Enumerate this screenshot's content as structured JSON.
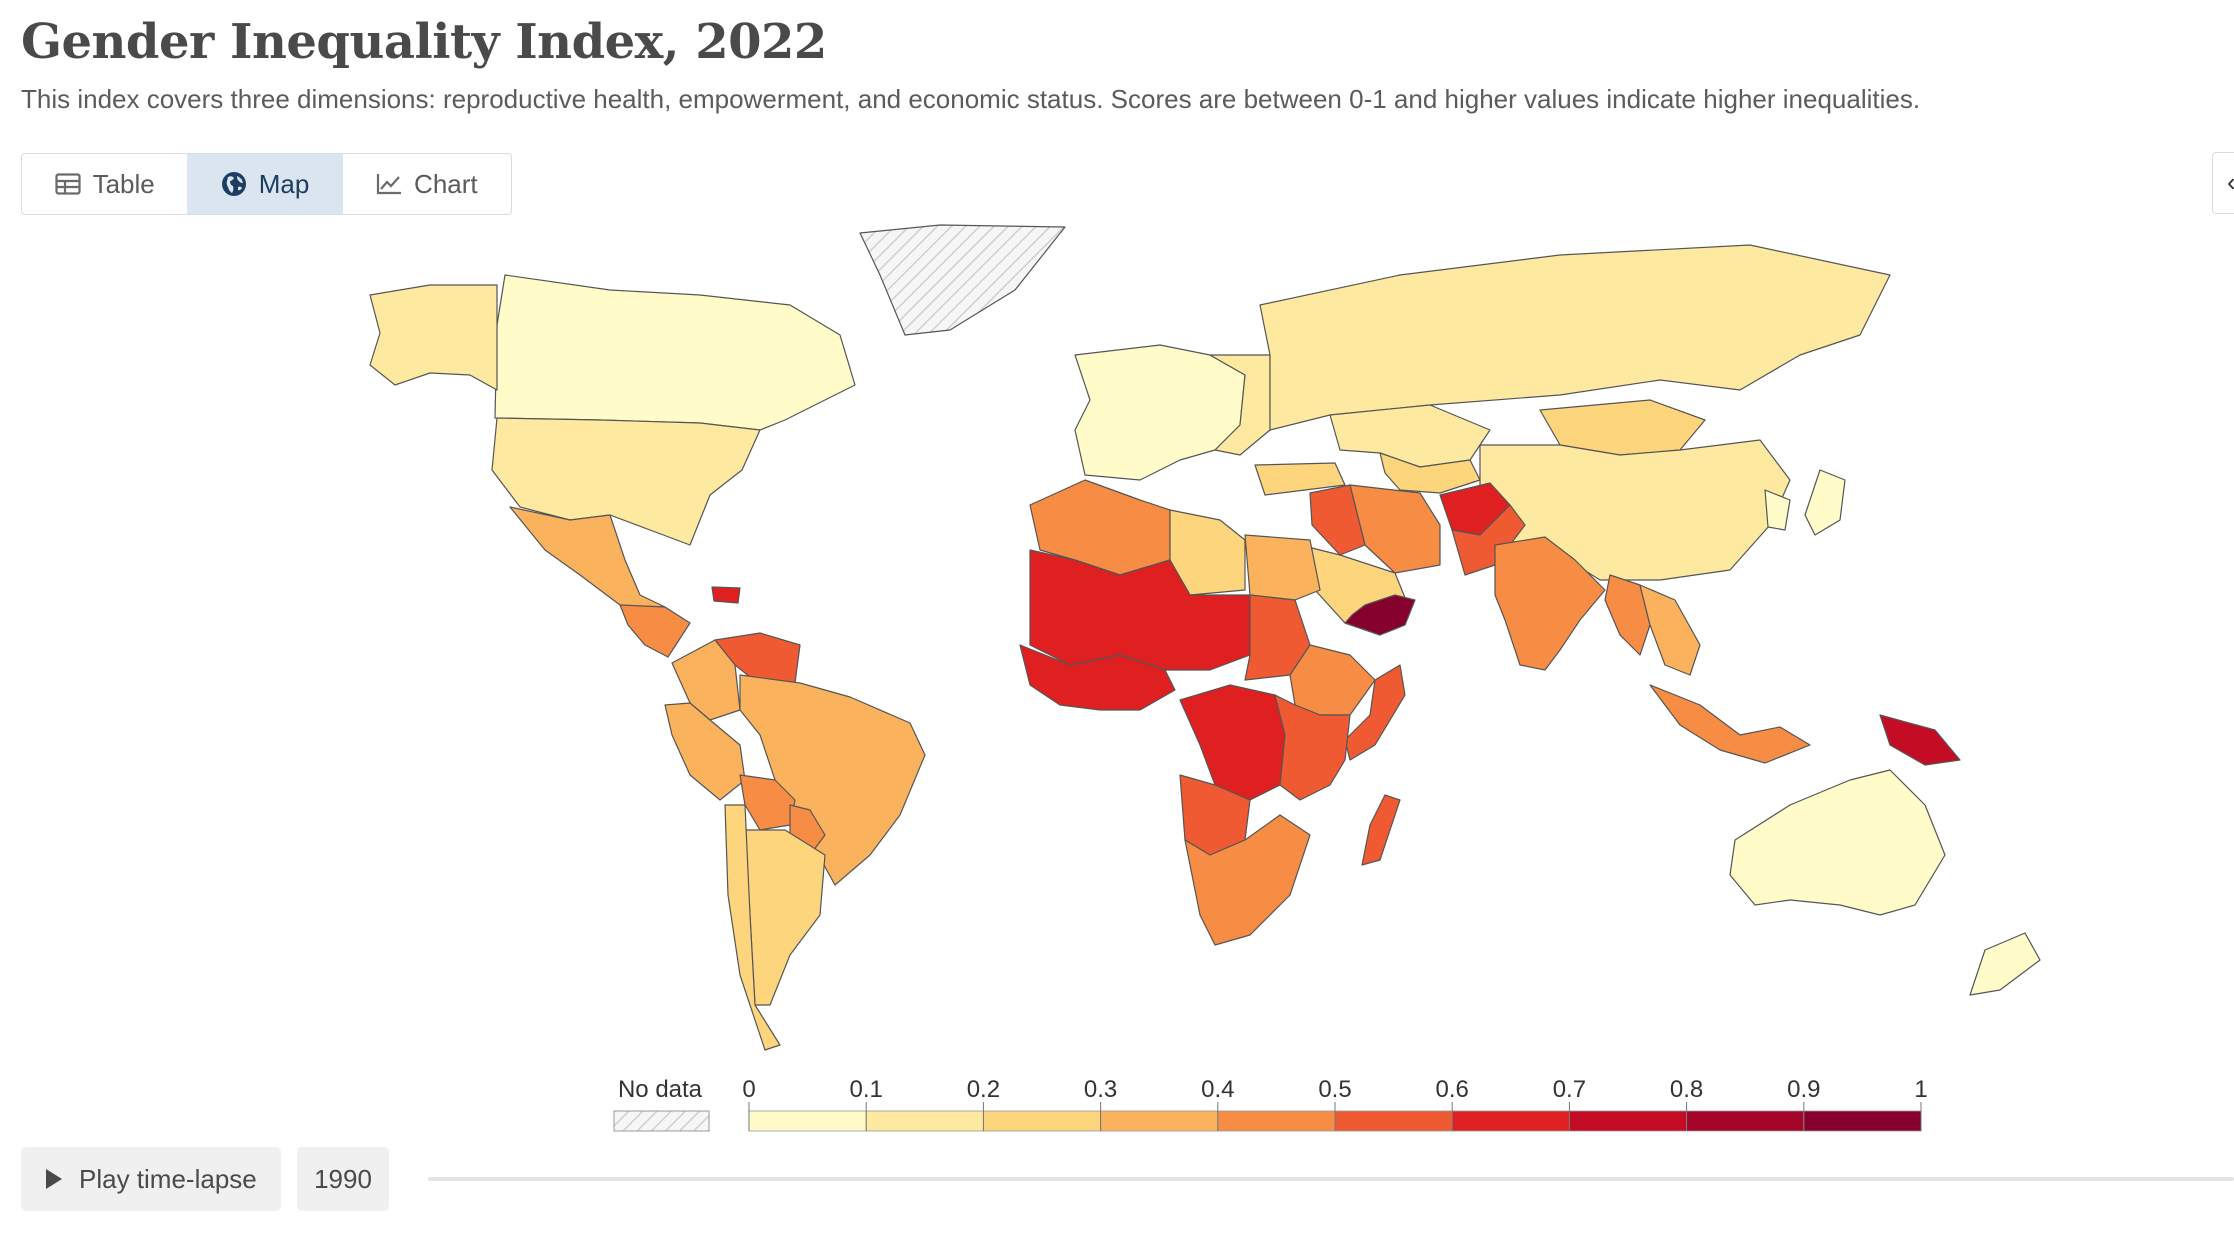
{
  "title": "Gender Inequality Index, 2022",
  "subtitle": "This index covers three dimensions: reproductive health, empowerment, and economic status. Scores are between 0-1 and higher values indicate higher inequalities.",
  "tabs": [
    {
      "label": "Table",
      "icon": "table-icon",
      "active": false
    },
    {
      "label": "Map",
      "icon": "globe-icon",
      "active": true
    },
    {
      "label": "Chart",
      "icon": "line-chart-icon",
      "active": false
    }
  ],
  "legend": {
    "no_data_label": "No data",
    "ticks": [
      "0",
      "0.1",
      "0.2",
      "0.3",
      "0.4",
      "0.5",
      "0.6",
      "0.7",
      "0.8",
      "0.9",
      "1"
    ],
    "colors": [
      "#fffcc9",
      "#fde99f",
      "#fdd57c",
      "#fbb25d",
      "#f78d45",
      "#f05a32",
      "#e02020",
      "#c40d24",
      "#a6052a",
      "#85002c"
    ]
  },
  "map_style": {
    "ocean": "#ffffff",
    "border": "#555555",
    "no_data_fill": "#f4f4f4",
    "no_data_hatch": "#d0d0d0"
  },
  "regions": [
    {
      "name": "Canada",
      "bin": 0
    },
    {
      "name": "Alaska",
      "bin": 1
    },
    {
      "name": "Greenland",
      "bin": -1
    },
    {
      "name": "United States",
      "bin": 1
    },
    {
      "name": "Mexico",
      "bin": 3
    },
    {
      "name": "Central America",
      "bin": 4
    },
    {
      "name": "Haiti",
      "bin": 6
    },
    {
      "name": "Venezuela",
      "bin": 5
    },
    {
      "name": "Colombia",
      "bin": 3
    },
    {
      "name": "Brazil",
      "bin": 3
    },
    {
      "name": "Peru",
      "bin": 3
    },
    {
      "name": "Bolivia",
      "bin": 4
    },
    {
      "name": "Paraguay",
      "bin": 4
    },
    {
      "name": "Argentina",
      "bin": 2
    },
    {
      "name": "Chile",
      "bin": 2
    },
    {
      "name": "Western Europe",
      "bin": 0
    },
    {
      "name": "Eastern Europe",
      "bin": 1
    },
    {
      "name": "Russia",
      "bin": 1
    },
    {
      "name": "Kazakhstan",
      "bin": 1
    },
    {
      "name": "Central Asia",
      "bin": 2
    },
    {
      "name": "Mongolia",
      "bin": 2
    },
    {
      "name": "China",
      "bin": 1
    },
    {
      "name": "Japan",
      "bin": 0
    },
    {
      "name": "Korea",
      "bin": 0
    },
    {
      "name": "Turkey",
      "bin": 2
    },
    {
      "name": "Iran",
      "bin": 4
    },
    {
      "name": "Iraq",
      "bin": 5
    },
    {
      "name": "Saudi Arabia",
      "bin": 2
    },
    {
      "name": "Yemen",
      "bin": 9
    },
    {
      "name": "Afghanistan",
      "bin": 6
    },
    {
      "name": "Pakistan",
      "bin": 5
    },
    {
      "name": "India",
      "bin": 4
    },
    {
      "name": "Myanmar",
      "bin": 4
    },
    {
      "name": "Southeast Asia",
      "bin": 3
    },
    {
      "name": "Indonesia",
      "bin": 4
    },
    {
      "name": "Papua New Guinea",
      "bin": 7
    },
    {
      "name": "Australia",
      "bin": 0
    },
    {
      "name": "New Zealand",
      "bin": 0
    },
    {
      "name": "Maghreb",
      "bin": 4
    },
    {
      "name": "Libya",
      "bin": 2
    },
    {
      "name": "Egypt",
      "bin": 3
    },
    {
      "name": "Sahel",
      "bin": 6
    },
    {
      "name": "West Africa",
      "bin": 6
    },
    {
      "name": "Sudan",
      "bin": 5
    },
    {
      "name": "Ethiopia",
      "bin": 4
    },
    {
      "name": "Somalia",
      "bin": 5
    },
    {
      "name": "DR Congo",
      "bin": 6
    },
    {
      "name": "East Africa",
      "bin": 5
    },
    {
      "name": "Angola",
      "bin": 5
    },
    {
      "name": "Southern Africa",
      "bin": 4
    },
    {
      "name": "Madagascar",
      "bin": 5
    }
  ],
  "controls": {
    "play_label": "Play time-lapse",
    "year_label": "1990"
  }
}
